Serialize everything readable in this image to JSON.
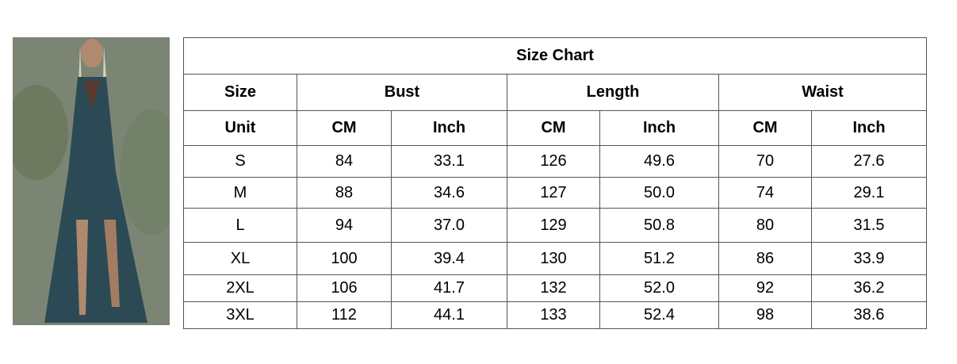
{
  "title": "Size Chart",
  "header_row": {
    "size": "Size",
    "bust": "Bust",
    "length": "Length",
    "waist": "Waist"
  },
  "unit_row": [
    "Unit",
    "CM",
    "Inch",
    "CM",
    "Inch",
    "CM",
    "Inch"
  ],
  "rows": [
    [
      "S",
      "84",
      "33.1",
      "126",
      "49.6",
      "70",
      "27.6"
    ],
    [
      "M",
      "88",
      "34.6",
      "127",
      "50.0",
      "74",
      "29.1"
    ],
    [
      "L",
      "94",
      "37.0",
      "129",
      "50.8",
      "80",
      "31.5"
    ],
    [
      "XL",
      "100",
      "39.4",
      "130",
      "51.2",
      "86",
      "33.9"
    ],
    [
      "2XL",
      "106",
      "41.7",
      "132",
      "52.0",
      "92",
      "36.2"
    ],
    [
      "3XL",
      "112",
      "44.1",
      "133",
      "52.4",
      "98",
      "38.6"
    ]
  ]
}
